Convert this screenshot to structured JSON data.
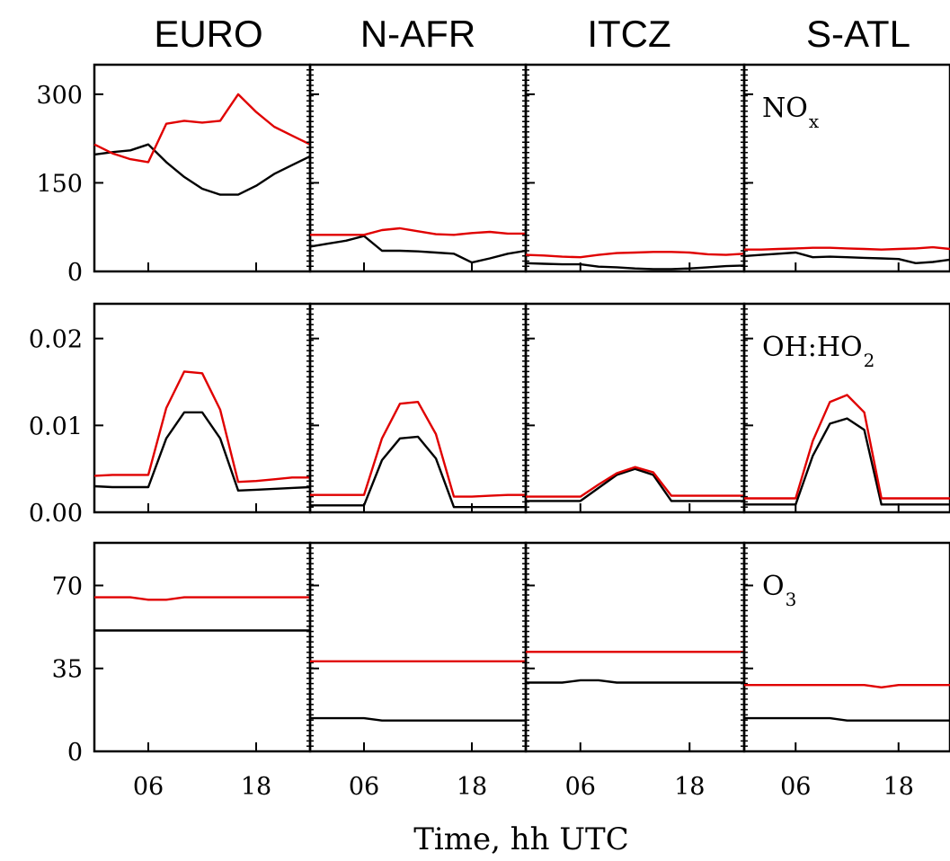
{
  "chart_data": {
    "type": "line",
    "columns": [
      "EURO",
      "N-AFR",
      "ITCZ",
      "S-ATL"
    ],
    "xlabel": "Time, hh UTC",
    "x_ticks": [
      "06",
      "18"
    ],
    "x": [
      0,
      2,
      4,
      6,
      8,
      10,
      12,
      14,
      16,
      18,
      20,
      22,
      24
    ],
    "colors": {
      "red_series": "#e00000",
      "black_series": "#000000"
    },
    "rows": [
      {
        "label_main": "NO",
        "label_sub": "x",
        "ylim": [
          0,
          350
        ],
        "yticks": [
          "300",
          "150",
          "0"
        ],
        "ytick_values": [
          300,
          150,
          0
        ],
        "panels": [
          {
            "column": "EURO",
            "red": [
              215,
              200,
              190,
              185,
              250,
              255,
              252,
              255,
              300,
              270,
              245,
              230,
              215
            ],
            "black": [
              198,
              202,
              205,
              215,
              185,
              160,
              140,
              130,
              130,
              145,
              165,
              180,
              195
            ]
          },
          {
            "column": "N-AFR",
            "red": [
              62,
              62,
              62,
              62,
              70,
              73,
              68,
              63,
              62,
              65,
              67,
              64,
              64
            ],
            "black": [
              42,
              47,
              52,
              60,
              35,
              35,
              34,
              32,
              30,
              15,
              22,
              30,
              35
            ]
          },
          {
            "column": "ITCZ",
            "red": [
              28,
              27,
              25,
              24,
              28,
              31,
              32,
              33,
              33,
              32,
              29,
              28,
              30
            ],
            "black": [
              14,
              13,
              12,
              12,
              8,
              7,
              5,
              4,
              4,
              5,
              7,
              9,
              10
            ]
          },
          {
            "column": "S-ATL",
            "red": [
              37,
              37,
              38,
              39,
              40,
              40,
              39,
              38,
              37,
              38,
              39,
              41,
              38
            ],
            "black": [
              26,
              28,
              30,
              32,
              24,
              25,
              24,
              23,
              22,
              21,
              14,
              16,
              20
            ]
          }
        ]
      },
      {
        "label_main": "OH:HO",
        "label_sub": "2",
        "ylim": [
          0,
          0.024
        ],
        "yticks": [
          "0.02",
          "0.01",
          "0.00"
        ],
        "ytick_values": [
          0.02,
          0.01,
          0
        ],
        "panels": [
          {
            "column": "EURO",
            "red": [
              0.0042,
              0.0043,
              0.0043,
              0.0043,
              0.012,
              0.0162,
              0.016,
              0.0118,
              0.0035,
              0.0036,
              0.0038,
              0.004,
              0.004
            ],
            "black": [
              0.003,
              0.0029,
              0.0029,
              0.0029,
              0.0085,
              0.0115,
              0.0115,
              0.0085,
              0.0025,
              0.0026,
              0.0027,
              0.0028,
              0.0029
            ]
          },
          {
            "column": "N-AFR",
            "red": [
              0.002,
              0.002,
              0.002,
              0.002,
              0.0085,
              0.0125,
              0.0127,
              0.009,
              0.0018,
              0.0018,
              0.0019,
              0.002,
              0.002
            ],
            "black": [
              0.0008,
              0.0008,
              0.0008,
              0.0008,
              0.006,
              0.0085,
              0.0087,
              0.0062,
              0.0006,
              0.0006,
              0.0006,
              0.0006,
              0.0006
            ]
          },
          {
            "column": "ITCZ",
            "red": [
              0.0018,
              0.0018,
              0.0018,
              0.0018,
              0.0032,
              0.0045,
              0.0052,
              0.0046,
              0.0019,
              0.0019,
              0.0019,
              0.0019,
              0.0019
            ],
            "black": [
              0.0013,
              0.0013,
              0.0013,
              0.0013,
              0.0028,
              0.0043,
              0.005,
              0.0043,
              0.0013,
              0.0013,
              0.0013,
              0.0013,
              0.0013
            ]
          },
          {
            "column": "S-ATL",
            "red": [
              0.0016,
              0.0016,
              0.0016,
              0.0016,
              0.0082,
              0.0127,
              0.0135,
              0.0115,
              0.0016,
              0.0016,
              0.0016,
              0.0016,
              0.0016
            ],
            "black": [
              0.0009,
              0.0009,
              0.0009,
              0.0009,
              0.0065,
              0.0102,
              0.0108,
              0.0095,
              0.0009,
              0.0009,
              0.0009,
              0.0009,
              0.0009
            ]
          }
        ]
      },
      {
        "label_main": "O",
        "label_sub": "3",
        "ylim": [
          0,
          88
        ],
        "yticks": [
          "70",
          "35",
          "0"
        ],
        "ytick_values": [
          70,
          35,
          0
        ],
        "panels": [
          {
            "column": "EURO",
            "red": [
              65,
              65,
              65,
              64,
              64,
              65,
              65,
              65,
              65,
              65,
              65,
              65,
              65
            ],
            "black": [
              51,
              51,
              51,
              51,
              51,
              51,
              51,
              51,
              51,
              51,
              51,
              51,
              51
            ]
          },
          {
            "column": "N-AFR",
            "red": [
              38,
              38,
              38,
              38,
              38,
              38,
              38,
              38,
              38,
              38,
              38,
              38,
              38
            ],
            "black": [
              14,
              14,
              14,
              14,
              13,
              13,
              13,
              13,
              13,
              13,
              13,
              13,
              13
            ]
          },
          {
            "column": "ITCZ",
            "red": [
              42,
              42,
              42,
              42,
              42,
              42,
              42,
              42,
              42,
              42,
              42,
              42,
              42
            ],
            "black": [
              29,
              29,
              29,
              30,
              30,
              29,
              29,
              29,
              29,
              29,
              29,
              29,
              29
            ]
          },
          {
            "column": "S-ATL",
            "red": [
              28,
              28,
              28,
              28,
              28,
              28,
              28,
              28,
              27,
              28,
              28,
              28,
              28
            ],
            "black": [
              14,
              14,
              14,
              14,
              14,
              14,
              13,
              13,
              13,
              13,
              13,
              13,
              13
            ]
          }
        ]
      }
    ]
  }
}
